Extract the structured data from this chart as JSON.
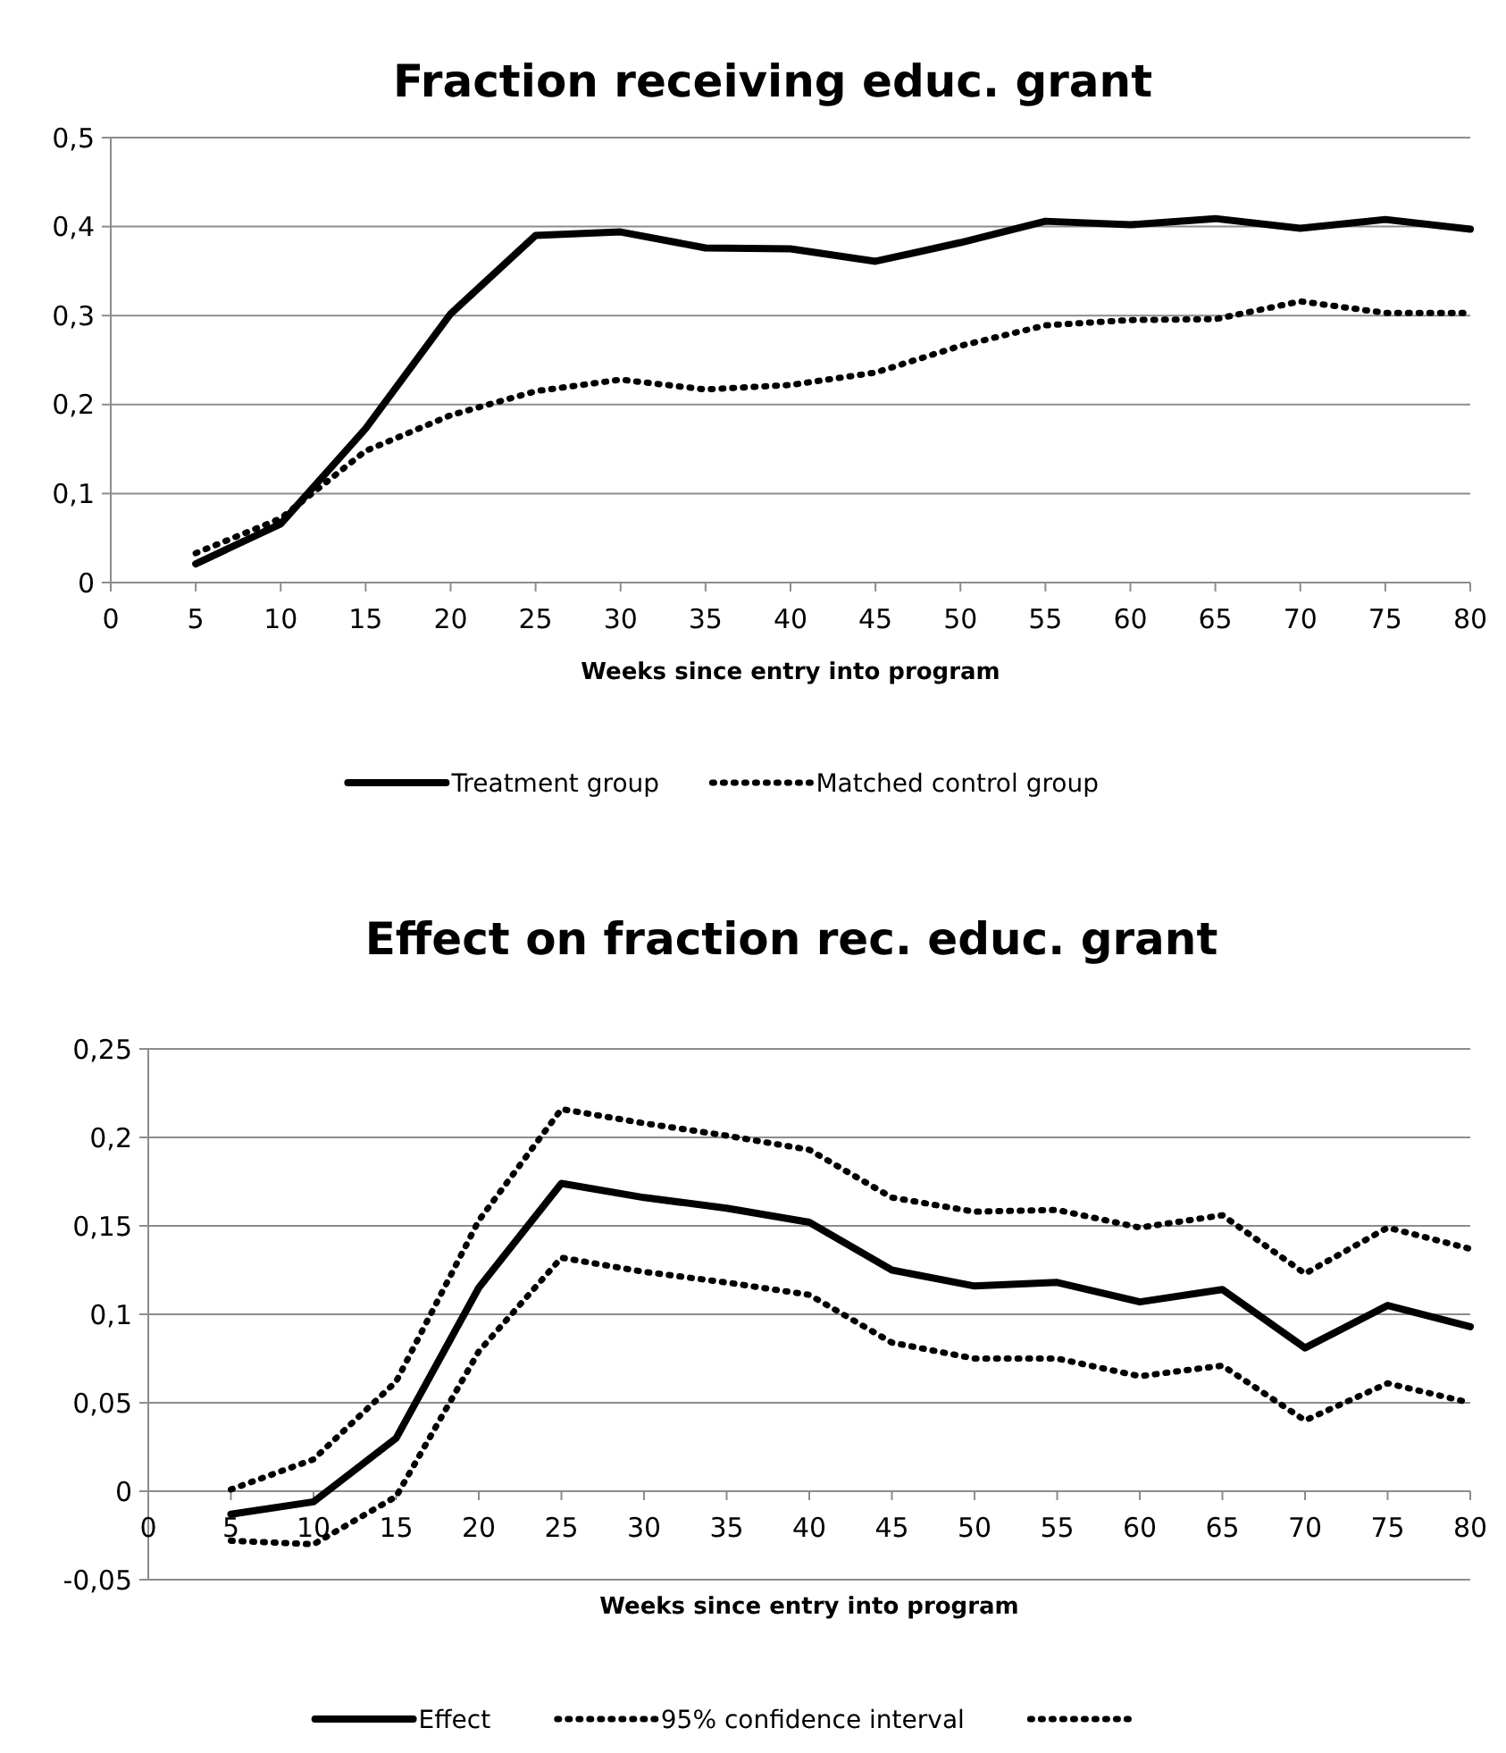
{
  "chart_data": [
    {
      "type": "line",
      "title": "Fraction receiving educ. grant",
      "xlabel": "Weeks since entry into program",
      "x": [
        5,
        10,
        15,
        20,
        25,
        30,
        35,
        40,
        45,
        50,
        55,
        60,
        65,
        70,
        75,
        80
      ],
      "xlim": [
        0,
        80
      ],
      "xticks": [
        0,
        5,
        10,
        15,
        20,
        25,
        30,
        35,
        40,
        45,
        50,
        55,
        60,
        65,
        70,
        75,
        80
      ],
      "ylim": [
        0,
        0.5
      ],
      "yticks": [
        0,
        {
          "value": 0.1,
          "label": "0,1"
        },
        {
          "value": 0.2,
          "label": "0,2"
        },
        {
          "value": 0.3,
          "label": "0,3"
        },
        {
          "value": 0.4,
          "label": "0,4"
        },
        {
          "value": 0.5,
          "label": "0,5"
        }
      ],
      "grid": "y",
      "legend": "bottom",
      "marker": "none",
      "series": [
        {
          "name": "Treatment group",
          "color": "#000000",
          "line_style": "solid",
          "values": [
            0.021,
            0.066,
            0.173,
            0.302,
            0.39,
            0.394,
            0.376,
            0.375,
            0.361,
            0.382,
            0.406,
            0.402,
            0.409,
            0.398,
            0.408,
            0.397
          ]
        },
        {
          "name": "Matched control group",
          "color": "#000000",
          "line_style": "dotted",
          "values": [
            0.033,
            0.072,
            0.148,
            0.188,
            0.215,
            0.228,
            0.217,
            0.222,
            0.236,
            0.266,
            0.289,
            0.295,
            0.296,
            0.316,
            0.303,
            0.303
          ]
        }
      ]
    },
    {
      "type": "line",
      "title": "Effect on fraction rec. educ. grant",
      "xlabel": "Weeks since entry into program",
      "x": [
        5,
        10,
        15,
        20,
        25,
        30,
        35,
        40,
        45,
        50,
        55,
        60,
        65,
        70,
        75,
        80
      ],
      "xlim": [
        0,
        80
      ],
      "xticks": [
        0,
        5,
        10,
        15,
        20,
        25,
        30,
        35,
        40,
        45,
        50,
        55,
        60,
        65,
        70,
        75,
        80
      ],
      "ylim": [
        -0.05,
        0.25
      ],
      "yticks": [
        {
          "value": -0.05,
          "label": "-0,05"
        },
        0,
        {
          "value": 0.05,
          "label": "0,05"
        },
        {
          "value": 0.1,
          "label": "0,1"
        },
        {
          "value": 0.15,
          "label": "0,15"
        },
        {
          "value": 0.2,
          "label": "0,2"
        },
        {
          "value": 0.25,
          "label": "0,25"
        }
      ],
      "grid": "y",
      "legend": "bottom",
      "marker": "none",
      "series": [
        {
          "name": "Effect",
          "color": "#000000",
          "line_style": "solid",
          "values": [
            -0.013,
            -0.006,
            0.03,
            0.115,
            0.174,
            0.166,
            0.16,
            0.152,
            0.125,
            0.116,
            0.118,
            0.107,
            0.114,
            0.081,
            0.105,
            0.093
          ]
        },
        {
          "name": "95% confidence interval",
          "color": "#000000",
          "line_style": "dotted",
          "values": [
            0.001,
            0.018,
            0.062,
            0.153,
            0.216,
            0.208,
            0.201,
            0.193,
            0.166,
            0.158,
            0.159,
            0.149,
            0.156,
            0.123,
            0.149,
            0.137
          ]
        },
        {
          "color": "#000000",
          "line_style": "dotted",
          "values": [
            -0.028,
            -0.03,
            -0.003,
            0.079,
            0.132,
            0.124,
            0.118,
            0.111,
            0.084,
            0.075,
            0.075,
            0.065,
            0.071,
            0.04,
            0.061,
            0.05
          ]
        }
      ]
    }
  ]
}
